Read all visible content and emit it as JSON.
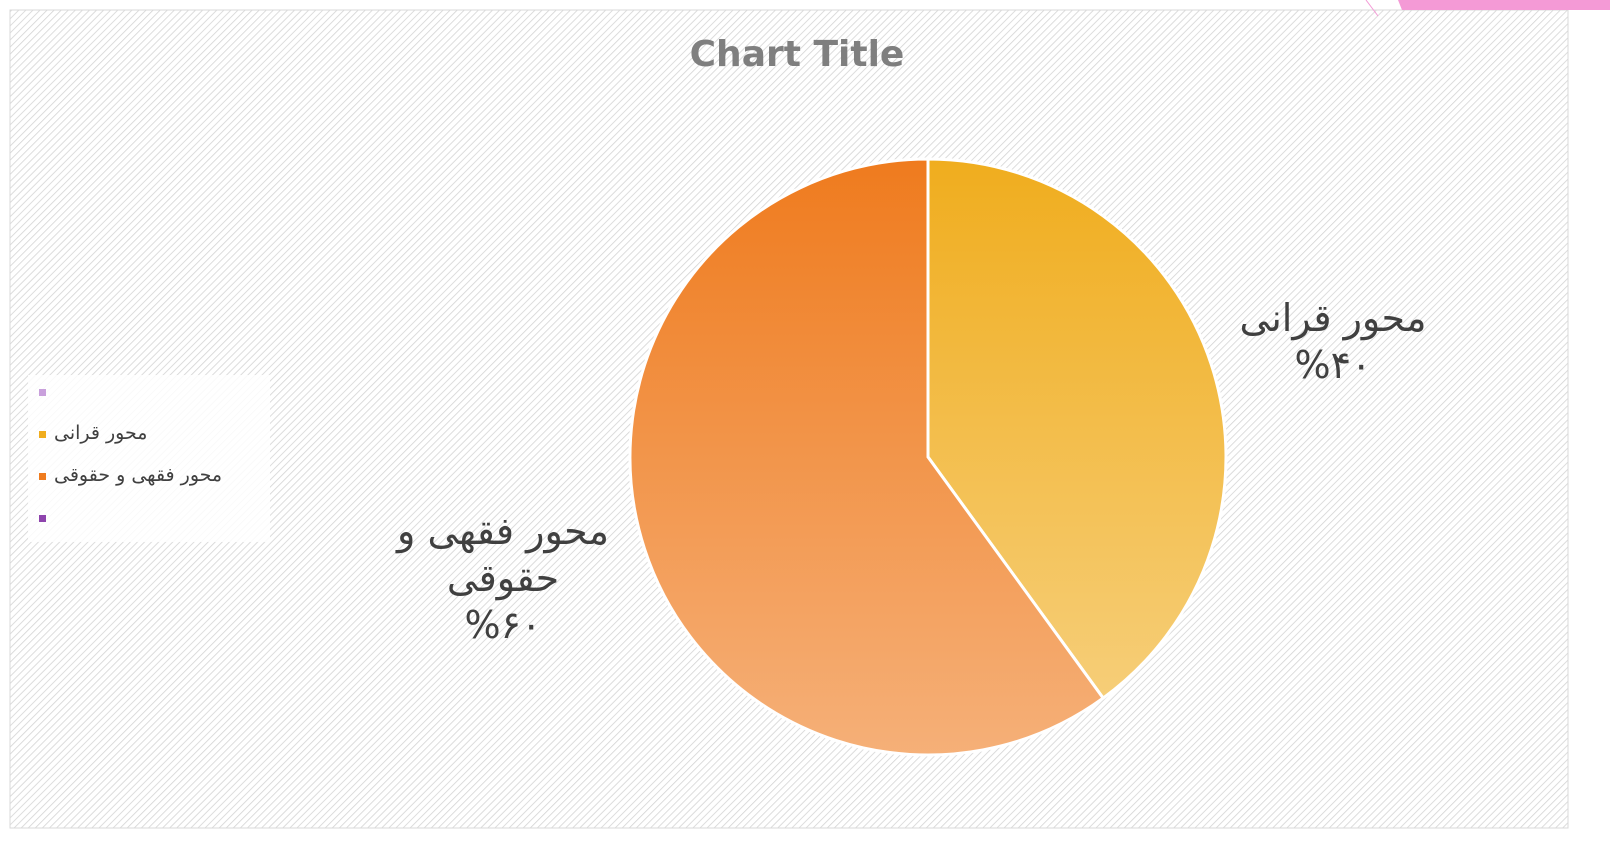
{
  "chart_data": {
    "type": "pie",
    "title": "Chart Title",
    "categories": [
      null,
      "محور قرانی",
      "محور فقهی و حقوقی",
      null
    ],
    "values": [
      0,
      40,
      60,
      0
    ],
    "value_labels": [
      null,
      "%۴۰",
      "%۶۰",
      null
    ],
    "colors": [
      "#c9a0dc",
      "#f0ad1e",
      "#ef7b1e",
      "#8e44ad"
    ],
    "legend": "left"
  }
}
